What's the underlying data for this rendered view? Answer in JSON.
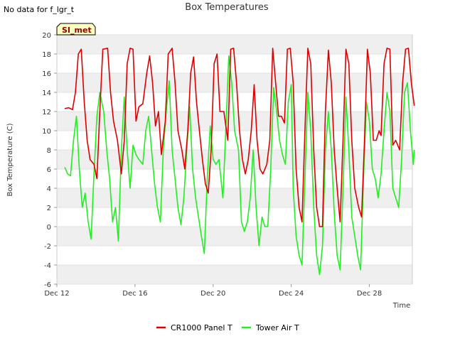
{
  "note": "No data for f_lgr_t",
  "badge": "SI_met",
  "colors": {
    "panel": "#dd0000",
    "air": "#22ee22",
    "band": "#efefef",
    "badge_bg": "#ffffc0"
  },
  "chart_data": {
    "type": "line",
    "title": "Box Temperatures",
    "xlabel": "Time",
    "ylabel": "Box Temperature (C)",
    "ylim": [
      -6,
      20
    ],
    "yticks": [
      -6,
      -4,
      -2,
      0,
      2,
      4,
      6,
      8,
      10,
      12,
      14,
      16,
      18,
      20
    ],
    "xlim": [
      12,
      30.2
    ],
    "xticks": [
      {
        "x": 12,
        "label": "Dec 12"
      },
      {
        "x": 16,
        "label": "Dec 16"
      },
      {
        "x": 20,
        "label": "Dec 20"
      },
      {
        "x": 24,
        "label": "Dec 24"
      },
      {
        "x": 28,
        "label": "Dec 28"
      }
    ],
    "series": [
      {
        "name": "CR1000 Panel T",
        "color": "#dd0000",
        "points": [
          [
            12.4,
            12.3
          ],
          [
            12.6,
            12.4
          ],
          [
            12.8,
            12.2
          ],
          [
            12.95,
            14
          ],
          [
            13.1,
            18
          ],
          [
            13.25,
            18.5
          ],
          [
            13.4,
            13
          ],
          [
            13.55,
            9
          ],
          [
            13.7,
            7
          ],
          [
            13.9,
            6.5
          ],
          [
            14.05,
            5
          ],
          [
            14.2,
            12
          ],
          [
            14.35,
            18.5
          ],
          [
            14.6,
            18.6
          ],
          [
            14.75,
            14
          ],
          [
            14.9,
            11
          ],
          [
            15.1,
            9
          ],
          [
            15.3,
            5.5
          ],
          [
            15.45,
            9
          ],
          [
            15.6,
            17
          ],
          [
            15.75,
            18.6
          ],
          [
            15.9,
            18.5
          ],
          [
            16.05,
            11
          ],
          [
            16.2,
            12.5
          ],
          [
            16.4,
            12.8
          ],
          [
            16.6,
            16
          ],
          [
            16.75,
            17.8
          ],
          [
            16.9,
            15
          ],
          [
            17.05,
            10.5
          ],
          [
            17.2,
            12
          ],
          [
            17.35,
            7.5
          ],
          [
            17.55,
            11
          ],
          [
            17.7,
            18
          ],
          [
            17.9,
            18.6
          ],
          [
            18.05,
            15
          ],
          [
            18.2,
            10
          ],
          [
            18.4,
            8
          ],
          [
            18.55,
            6
          ],
          [
            18.7,
            10
          ],
          [
            18.85,
            16
          ],
          [
            19.0,
            17.7
          ],
          [
            19.15,
            13
          ],
          [
            19.3,
            10
          ],
          [
            19.45,
            7
          ],
          [
            19.6,
            4.5
          ],
          [
            19.75,
            3.5
          ],
          [
            19.9,
            8
          ],
          [
            20.05,
            17
          ],
          [
            20.2,
            18
          ],
          [
            20.35,
            12
          ],
          [
            20.55,
            12
          ],
          [
            20.75,
            9
          ],
          [
            20.9,
            18.5
          ],
          [
            21.05,
            18.6
          ],
          [
            21.2,
            15
          ],
          [
            21.35,
            10
          ],
          [
            21.5,
            7
          ],
          [
            21.65,
            5.5
          ],
          [
            21.8,
            7
          ],
          [
            21.95,
            10
          ],
          [
            22.1,
            14.8
          ],
          [
            22.25,
            9
          ],
          [
            22.4,
            6
          ],
          [
            22.55,
            5.5
          ],
          [
            22.75,
            6.5
          ],
          [
            22.9,
            9
          ],
          [
            23.05,
            18.6
          ],
          [
            23.2,
            15
          ],
          [
            23.35,
            11.5
          ],
          [
            23.5,
            11.5
          ],
          [
            23.65,
            10.8
          ],
          [
            23.8,
            18.5
          ],
          [
            23.95,
            18.6
          ],
          [
            24.1,
            15
          ],
          [
            24.25,
            6
          ],
          [
            24.4,
            2
          ],
          [
            24.55,
            0.5
          ],
          [
            24.7,
            10
          ],
          [
            24.85,
            18.6
          ],
          [
            25.0,
            17
          ],
          [
            25.15,
            8
          ],
          [
            25.3,
            2
          ],
          [
            25.45,
            0
          ],
          [
            25.6,
            0
          ],
          [
            25.75,
            12
          ],
          [
            25.9,
            18.4
          ],
          [
            26.05,
            15
          ],
          [
            26.2,
            8
          ],
          [
            26.35,
            4
          ],
          [
            26.5,
            0.5
          ],
          [
            26.65,
            9
          ],
          [
            26.8,
            18.5
          ],
          [
            26.95,
            17
          ],
          [
            27.1,
            9
          ],
          [
            27.25,
            4
          ],
          [
            27.45,
            2
          ],
          [
            27.6,
            1
          ],
          [
            27.75,
            9
          ],
          [
            27.9,
            18.5
          ],
          [
            28.05,
            16
          ],
          [
            28.2,
            9
          ],
          [
            28.35,
            9
          ],
          [
            28.5,
            10
          ],
          [
            28.6,
            9.5
          ],
          [
            28.75,
            17
          ],
          [
            28.9,
            18.6
          ],
          [
            29.05,
            18.5
          ],
          [
            29.2,
            8.5
          ],
          [
            29.35,
            9
          ],
          [
            29.55,
            8
          ],
          [
            29.7,
            15
          ],
          [
            29.85,
            18.5
          ],
          [
            30.0,
            18.6
          ],
          [
            30.15,
            15
          ],
          [
            30.3,
            12.6
          ]
        ]
      },
      {
        "name": "Tower Air T",
        "color": "#22ee22",
        "points": [
          [
            12.4,
            6.2
          ],
          [
            12.55,
            5.5
          ],
          [
            12.7,
            5.3
          ],
          [
            12.85,
            9
          ],
          [
            13.0,
            11.5
          ],
          [
            13.15,
            6
          ],
          [
            13.3,
            2
          ],
          [
            13.45,
            3.5
          ],
          [
            13.6,
            0.5
          ],
          [
            13.75,
            -1.3
          ],
          [
            13.9,
            5.5
          ],
          [
            14.05,
            11.5
          ],
          [
            14.2,
            14
          ],
          [
            14.4,
            12
          ],
          [
            14.55,
            8
          ],
          [
            14.7,
            5
          ],
          [
            14.85,
            0.5
          ],
          [
            15.0,
            2
          ],
          [
            15.15,
            -1.5
          ],
          [
            15.3,
            8
          ],
          [
            15.45,
            13.5
          ],
          [
            15.6,
            8
          ],
          [
            15.75,
            4
          ],
          [
            15.9,
            8.5
          ],
          [
            16.05,
            7.5
          ],
          [
            16.2,
            7
          ],
          [
            16.4,
            6.5
          ],
          [
            16.55,
            10
          ],
          [
            16.7,
            11.5
          ],
          [
            16.85,
            8
          ],
          [
            17.0,
            4.5
          ],
          [
            17.15,
            2
          ],
          [
            17.3,
            0.5
          ],
          [
            17.45,
            8
          ],
          [
            17.6,
            12
          ],
          [
            17.75,
            15.2
          ],
          [
            17.9,
            8
          ],
          [
            18.05,
            5
          ],
          [
            18.2,
            2
          ],
          [
            18.35,
            0.2
          ],
          [
            18.5,
            3
          ],
          [
            18.65,
            8
          ],
          [
            18.8,
            12.5
          ],
          [
            18.95,
            6
          ],
          [
            19.1,
            3
          ],
          [
            19.25,
            1
          ],
          [
            19.4,
            -1
          ],
          [
            19.55,
            -2.8
          ],
          [
            19.7,
            5
          ],
          [
            19.85,
            10.5
          ],
          [
            20.0,
            7
          ],
          [
            20.15,
            6.5
          ],
          [
            20.3,
            7
          ],
          [
            20.5,
            3
          ],
          [
            20.65,
            10
          ],
          [
            20.8,
            17.8
          ],
          [
            20.95,
            15
          ],
          [
            21.1,
            10
          ],
          [
            21.3,
            8
          ],
          [
            21.45,
            0.5
          ],
          [
            21.6,
            -0.5
          ],
          [
            21.75,
            0.5
          ],
          [
            21.9,
            3
          ],
          [
            22.05,
            8
          ],
          [
            22.2,
            2
          ],
          [
            22.35,
            -2
          ],
          [
            22.5,
            1
          ],
          [
            22.65,
            0
          ],
          [
            22.8,
            0
          ],
          [
            22.95,
            6
          ],
          [
            23.1,
            14.5
          ],
          [
            23.25,
            12
          ],
          [
            23.4,
            9
          ],
          [
            23.55,
            7.5
          ],
          [
            23.7,
            6.5
          ],
          [
            23.85,
            13
          ],
          [
            24.0,
            14.8
          ],
          [
            24.1,
            4
          ],
          [
            24.25,
            -1
          ],
          [
            24.4,
            -3
          ],
          [
            24.55,
            -4
          ],
          [
            24.7,
            5
          ],
          [
            24.85,
            14
          ],
          [
            25.0,
            10
          ],
          [
            25.15,
            2
          ],
          [
            25.3,
            -3
          ],
          [
            25.45,
            -5
          ],
          [
            25.6,
            -2
          ],
          [
            25.75,
            8
          ],
          [
            25.9,
            12
          ],
          [
            26.05,
            8
          ],
          [
            26.2,
            1.5
          ],
          [
            26.35,
            -3
          ],
          [
            26.5,
            -4.5
          ],
          [
            26.65,
            4
          ],
          [
            26.8,
            13.5
          ],
          [
            26.95,
            8
          ],
          [
            27.1,
            1
          ],
          [
            27.25,
            -1
          ],
          [
            27.4,
            -3
          ],
          [
            27.55,
            -4.5
          ],
          [
            27.7,
            5
          ],
          [
            27.85,
            13
          ],
          [
            28.0,
            11
          ],
          [
            28.15,
            6
          ],
          [
            28.3,
            5
          ],
          [
            28.45,
            3
          ],
          [
            28.6,
            5.5
          ],
          [
            28.75,
            10
          ],
          [
            28.9,
            14
          ],
          [
            29.05,
            12
          ],
          [
            29.2,
            4
          ],
          [
            29.35,
            3
          ],
          [
            29.5,
            2
          ],
          [
            29.65,
            7
          ],
          [
            29.8,
            14
          ],
          [
            29.95,
            15
          ],
          [
            30.1,
            10
          ],
          [
            30.25,
            6.5
          ],
          [
            30.3,
            8
          ]
        ]
      }
    ]
  }
}
